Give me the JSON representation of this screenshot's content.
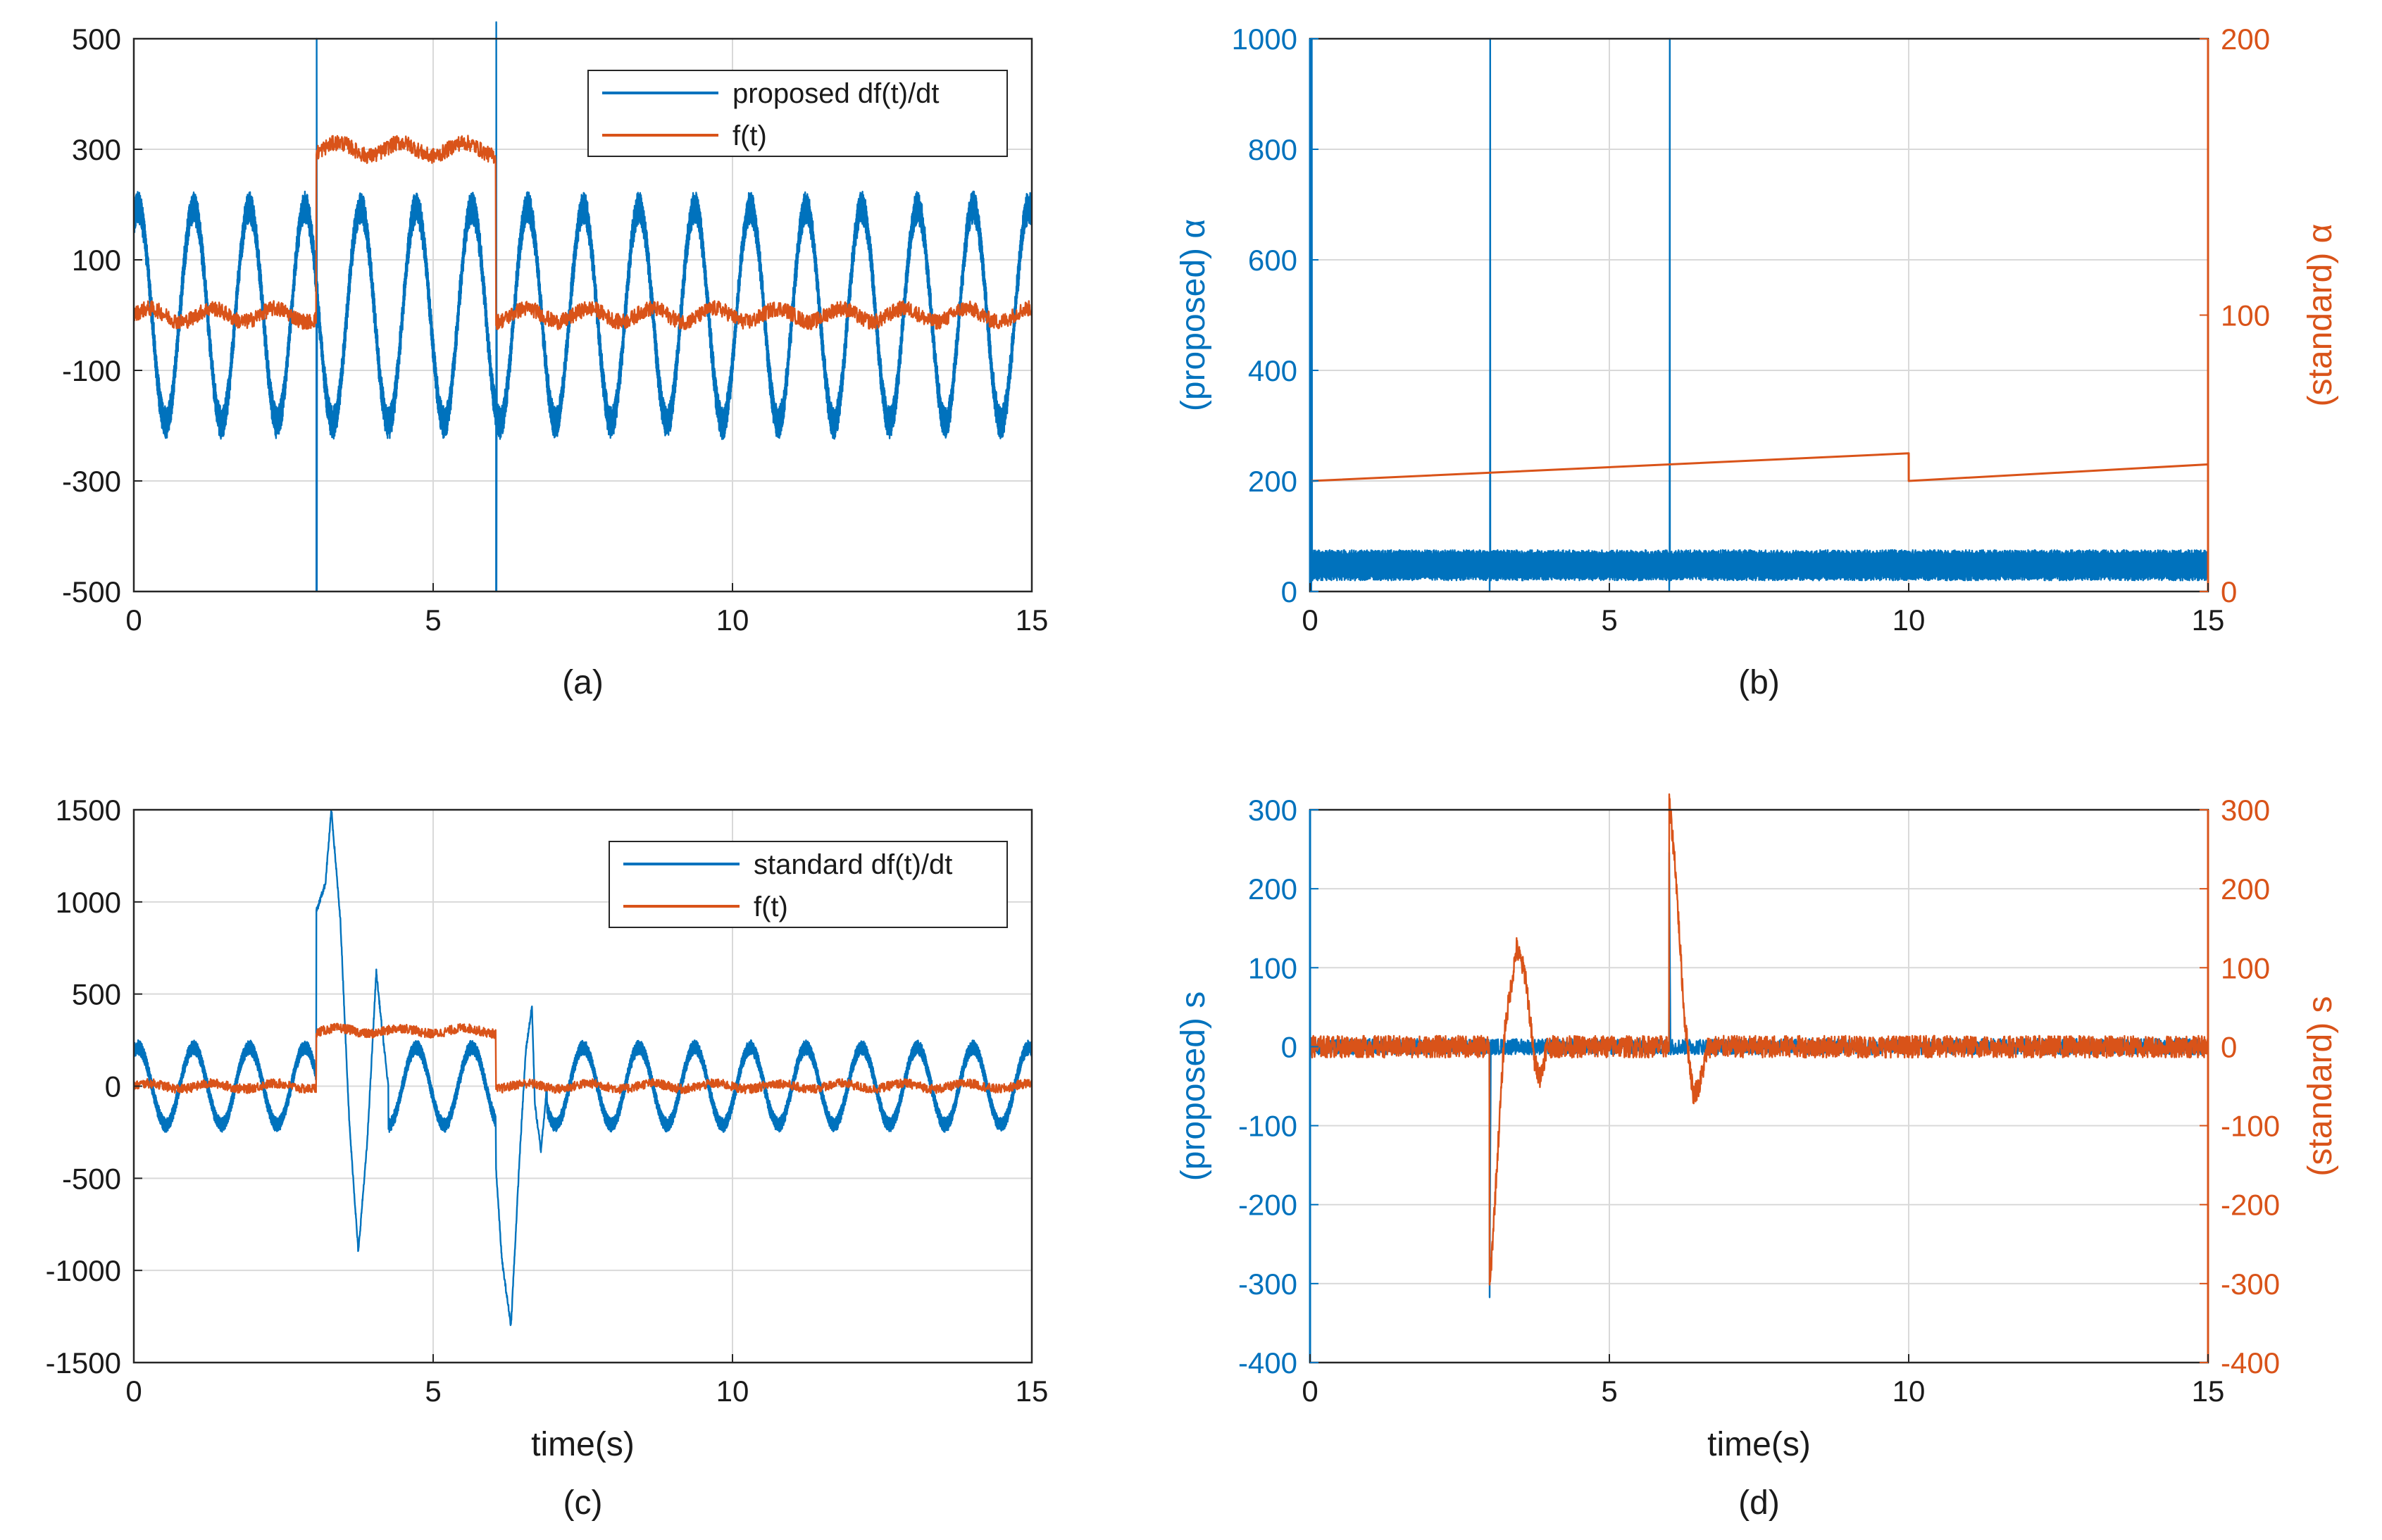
{
  "chart_data": [
    {
      "id": "a",
      "type": "line",
      "caption": "(a)",
      "xlabel": "",
      "xlim": [
        0,
        15
      ],
      "ylim": [
        -500,
        500
      ],
      "xticks": [
        0,
        5,
        10,
        15
      ],
      "yticks": [
        -500,
        -300,
        -100,
        100,
        300,
        500
      ],
      "grid": true,
      "legend": {
        "position": "top-right",
        "entries": [
          "proposed df(t)/dt",
          "f(t)"
        ]
      },
      "series": [
        {
          "name": "proposed df(t)/dt",
          "color": "#0072BD",
          "kind": "osc",
          "amplitude": 225,
          "period": 0.93,
          "noise": 30,
          "spikes": [
            {
              "t": 3.05,
              "min": -500,
              "max": 500
            },
            {
              "t": 6.05,
              "min": -500,
              "max": 530
            }
          ]
        },
        {
          "name": "f(t)",
          "color": "#D95319",
          "kind": "steps",
          "noise": 14,
          "wobble": 12,
          "levels": [
            {
              "t0": 0,
              "t1": 3.05,
              "v": 0
            },
            {
              "t0": 3.05,
              "t1": 6.05,
              "v": 300
            },
            {
              "t0": 6.05,
              "t1": 15,
              "v": 0
            }
          ]
        }
      ]
    },
    {
      "id": "b",
      "type": "line",
      "caption": "(b)",
      "xlabel": "",
      "xlim": [
        0,
        15
      ],
      "ylim": [
        0,
        1000
      ],
      "ylim_right": [
        0,
        200
      ],
      "xticks": [
        0,
        5,
        10,
        15
      ],
      "yticks": [
        0,
        200,
        400,
        600,
        800,
        1000
      ],
      "yticks_right": [
        0,
        100,
        200
      ],
      "ylabel_left": "(proposed) α",
      "ylabel_right": "(standard) α",
      "left_color": "#0072BD",
      "right_color": "#D95319",
      "grid": true,
      "series": [
        {
          "name": "(proposed) α",
          "color": "#0072BD",
          "axis": "left",
          "kind": "band",
          "low": 20,
          "high": 75,
          "spikes": [
            {
              "t": 0.02,
              "min": 0,
              "max": 1000
            },
            {
              "t": 3.0,
              "min": 0,
              "max": 1000
            },
            {
              "t": 6.0,
              "min": 0,
              "max": 1000
            }
          ]
        },
        {
          "name": "(standard) α",
          "color": "#D95319",
          "axis": "right",
          "kind": "poly",
          "points": [
            [
              0.02,
              40
            ],
            [
              10,
              50
            ],
            [
              10.001,
              40
            ],
            [
              15,
              46
            ]
          ]
        }
      ]
    },
    {
      "id": "c",
      "type": "line",
      "caption": "(c)",
      "xlabel": "time(s)",
      "xlim": [
        0,
        15
      ],
      "ylim": [
        -1500,
        1500
      ],
      "xticks": [
        0,
        5,
        10,
        15
      ],
      "yticks": [
        -1500,
        -1000,
        -500,
        0,
        500,
        1000,
        1500
      ],
      "grid": true,
      "legend": {
        "position": "top-right",
        "entries": [
          "standard df(t)/dt",
          "f(t)"
        ]
      },
      "series": [
        {
          "name": "standard df(t)/dt",
          "color": "#0072BD",
          "kind": "osc_trans",
          "amplitude": 250,
          "period": 0.93,
          "noise": 40,
          "transients": [
            [
              [
                3.05,
                950
              ],
              [
                3.2,
                1100
              ],
              [
                3.3,
                1500
              ],
              [
                3.45,
                900
              ],
              [
                3.6,
                -200
              ],
              [
                3.75,
                -900
              ],
              [
                3.9,
                -300
              ],
              [
                4.05,
                620
              ],
              [
                4.15,
                300
              ],
              [
                4.25,
                0
              ]
            ],
            [
              [
                6.05,
                -450
              ],
              [
                6.15,
                -950
              ],
              [
                6.3,
                -1300
              ],
              [
                6.45,
                -350
              ],
              [
                6.55,
                200
              ],
              [
                6.65,
                430
              ],
              [
                6.7,
                -100
              ],
              [
                6.8,
                -350
              ],
              [
                6.9,
                0
              ]
            ]
          ]
        },
        {
          "name": "f(t)",
          "color": "#D95319",
          "kind": "steps",
          "noise": 25,
          "wobble": 15,
          "levels": [
            {
              "t0": 0,
              "t1": 3.05,
              "v": 0
            },
            {
              "t0": 3.05,
              "t1": 6.05,
              "v": 300
            },
            {
              "t0": 6.05,
              "t1": 15,
              "v": 0
            }
          ]
        }
      ]
    },
    {
      "id": "d",
      "type": "line",
      "caption": "(d)",
      "xlabel": "time(s)",
      "xlim": [
        0,
        15
      ],
      "ylim": [
        -400,
        300
      ],
      "ylim_right": [
        -400,
        300
      ],
      "xticks": [
        0,
        5,
        10,
        15
      ],
      "yticks": [
        -400,
        -300,
        -200,
        -100,
        0,
        100,
        200,
        300
      ],
      "yticks_right": [
        -400,
        -300,
        -200,
        -100,
        0,
        100,
        200,
        300
      ],
      "ylabel_left": "(proposed) s",
      "ylabel_right": "(standard) s",
      "left_color": "#0072BD",
      "right_color": "#D95319",
      "grid": true,
      "series": [
        {
          "name": "(proposed) s",
          "color": "#0072BD",
          "axis": "left",
          "kind": "noise_trans",
          "noise": 10,
          "transients": [
            [
              [
                3.0,
                -310
              ],
              [
                3.02,
                0
              ]
            ],
            [
              [
                6.0,
                250
              ],
              [
                6.02,
                0
              ]
            ]
          ]
        },
        {
          "name": "(standard) s",
          "color": "#D95319",
          "axis": "right",
          "kind": "noise_trans",
          "noise": 14,
          "transients": [
            [
              [
                3.0,
                -310
              ],
              [
                3.1,
                -180
              ],
              [
                3.25,
                20
              ],
              [
                3.45,
                125
              ],
              [
                3.6,
                90
              ],
              [
                3.75,
                -20
              ],
              [
                3.85,
                -40
              ],
              [
                3.95,
                0
              ]
            ],
            [
              [
                6.0,
                310
              ],
              [
                6.1,
                230
              ],
              [
                6.25,
                40
              ],
              [
                6.4,
                -60
              ],
              [
                6.5,
                -50
              ],
              [
                6.65,
                0
              ]
            ]
          ]
        }
      ]
    }
  ]
}
